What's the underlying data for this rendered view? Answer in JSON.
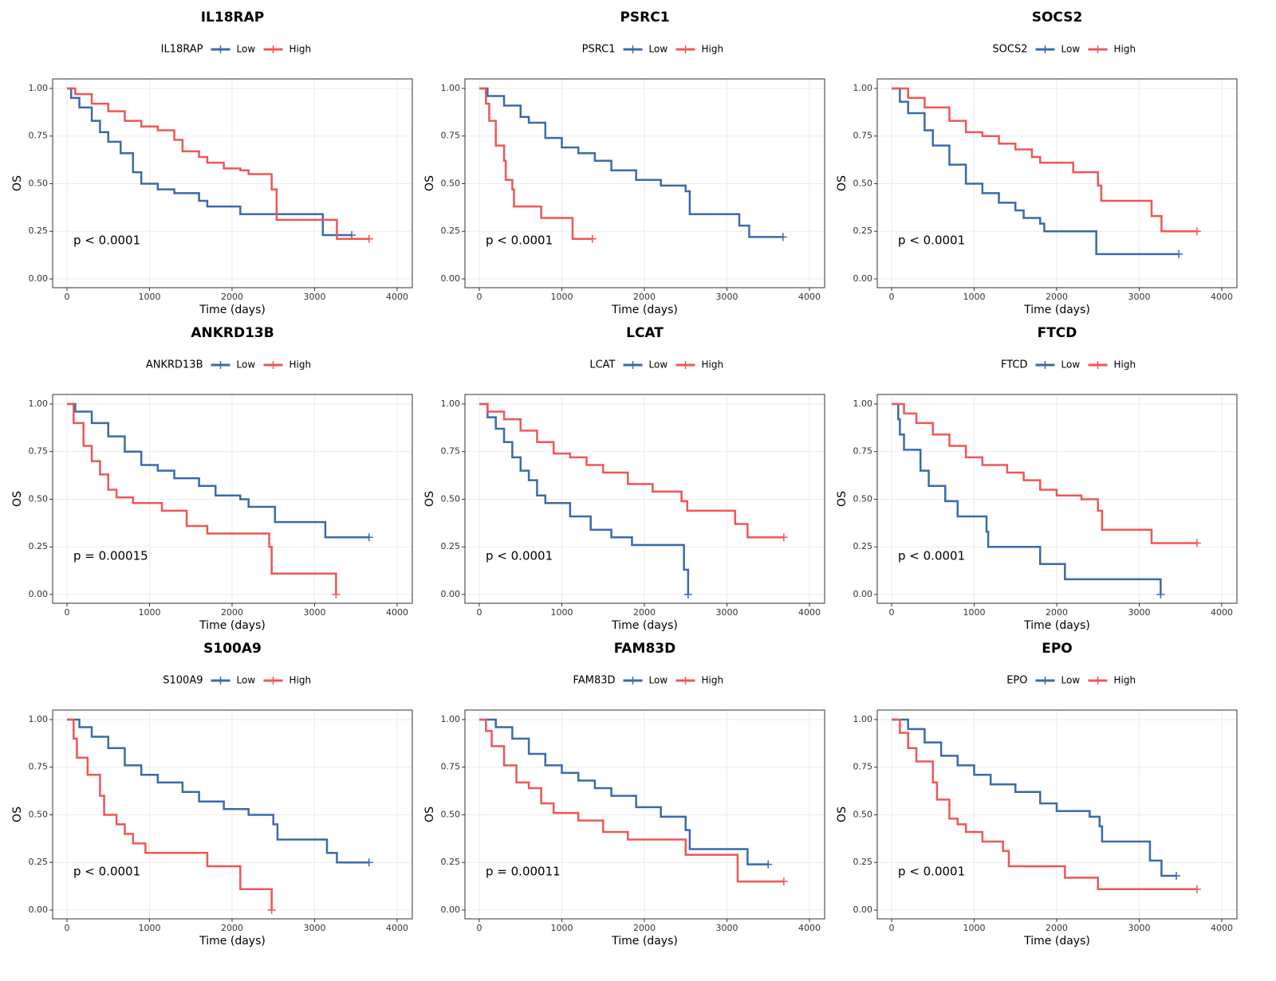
{
  "chart_data": [
    {
      "type": "line",
      "step": true,
      "title": "IL18RAP",
      "legend_title": "IL18RAP",
      "xlabel": "Time (days)",
      "ylabel": "OS",
      "annotation": "p < 0.0001",
      "xlim": [
        -174,
        4184
      ],
      "ylim": [
        -0.046,
        1.05
      ],
      "xticks": [
        0,
        1000,
        2000,
        3000,
        4000
      ],
      "yticks": [
        {
          "value": 0,
          "label": "0.00"
        },
        {
          "value": 0.25,
          "label": "0.25"
        },
        {
          "value": 0.5,
          "label": "0.50"
        },
        {
          "value": 0.75,
          "label": "0.75"
        },
        {
          "value": 1,
          "label": "1.00"
        }
      ],
      "grid": true,
      "series": [
        {
          "name": "Low",
          "color": "#3b6aaa",
          "x": [
            0,
            50,
            150,
            300,
            400,
            500,
            650,
            800,
            900,
            1100,
            1300,
            1600,
            1700,
            2100,
            3100,
            3450
          ],
          "values": [
            1,
            0.95,
            0.9,
            0.83,
            0.77,
            0.72,
            0.66,
            0.56,
            0.5,
            0.47,
            0.45,
            0.41,
            0.38,
            0.34,
            0.23,
            0.23
          ]
        },
        {
          "name": "High",
          "color": "#ef5656",
          "x": [
            0,
            100,
            300,
            500,
            700,
            900,
            1100,
            1300,
            1400,
            1600,
            1700,
            1900,
            2100,
            2200,
            2480,
            2540,
            3270,
            3660
          ],
          "values": [
            1,
            0.97,
            0.92,
            0.88,
            0.83,
            0.8,
            0.78,
            0.73,
            0.67,
            0.64,
            0.61,
            0.58,
            0.57,
            0.55,
            0.47,
            0.31,
            0.21,
            0.21
          ]
        }
      ]
    },
    {
      "type": "line",
      "step": true,
      "title": "PSRC1",
      "legend_title": "PSRC1",
      "xlabel": "Time (days)",
      "ylabel": "OS",
      "annotation": "p < 0.0001",
      "xlim": [
        -174,
        4184
      ],
      "ylim": [
        -0.046,
        1.05
      ],
      "xticks": [
        0,
        1000,
        2000,
        3000,
        4000
      ],
      "yticks": [
        {
          "value": 0,
          "label": "0.00"
        },
        {
          "value": 0.25,
          "label": "0.25"
        },
        {
          "value": 0.5,
          "label": "0.50"
        },
        {
          "value": 0.75,
          "label": "0.75"
        },
        {
          "value": 1,
          "label": "1.00"
        }
      ],
      "grid": true,
      "series": [
        {
          "name": "Low",
          "color": "#3b6aaa",
          "x": [
            0,
            100,
            300,
            500,
            600,
            800,
            1000,
            1200,
            1400,
            1600,
            1900,
            2200,
            2500,
            2550,
            3150,
            3270,
            3680
          ],
          "values": [
            1,
            0.96,
            0.91,
            0.85,
            0.82,
            0.74,
            0.69,
            0.66,
            0.62,
            0.57,
            0.52,
            0.49,
            0.46,
            0.34,
            0.28,
            0.22,
            0.22
          ]
        },
        {
          "name": "High",
          "color": "#ef5656",
          "x": [
            0,
            80,
            120,
            200,
            300,
            320,
            400,
            420,
            750,
            1130,
            1370
          ],
          "values": [
            1,
            0.92,
            0.83,
            0.7,
            0.62,
            0.52,
            0.47,
            0.38,
            0.32,
            0.21,
            0.21
          ]
        }
      ]
    },
    {
      "type": "line",
      "step": true,
      "title": "SOCS2",
      "legend_title": "SOCS2",
      "xlabel": "Time (days)",
      "ylabel": "OS",
      "annotation": "p < 0.0001",
      "xlim": [
        -174,
        4184
      ],
      "ylim": [
        -0.046,
        1.05
      ],
      "xticks": [
        0,
        1000,
        2000,
        3000,
        4000
      ],
      "yticks": [
        {
          "value": 0,
          "label": "0.00"
        },
        {
          "value": 0.25,
          "label": "0.25"
        },
        {
          "value": 0.5,
          "label": "0.50"
        },
        {
          "value": 0.75,
          "label": "0.75"
        },
        {
          "value": 1,
          "label": "1.00"
        }
      ],
      "grid": true,
      "series": [
        {
          "name": "Low",
          "color": "#3b6aaa",
          "x": [
            0,
            100,
            200,
            400,
            500,
            700,
            900,
            1100,
            1300,
            1500,
            1600,
            1800,
            1850,
            2480,
            3480
          ],
          "values": [
            1,
            0.93,
            0.87,
            0.78,
            0.7,
            0.6,
            0.5,
            0.45,
            0.4,
            0.36,
            0.32,
            0.29,
            0.25,
            0.13,
            0.13
          ]
        },
        {
          "name": "High",
          "color": "#ef5656",
          "x": [
            0,
            200,
            400,
            700,
            900,
            1100,
            1300,
            1500,
            1700,
            1800,
            2200,
            2500,
            2540,
            3150,
            3270,
            3700
          ],
          "values": [
            1,
            0.95,
            0.9,
            0.83,
            0.77,
            0.75,
            0.71,
            0.68,
            0.64,
            0.61,
            0.56,
            0.49,
            0.41,
            0.33,
            0.25,
            0.25
          ]
        }
      ]
    },
    {
      "type": "line",
      "step": true,
      "title": "ANKRD13B",
      "legend_title": "ANKRD13B",
      "xlabel": "Time (days)",
      "ylabel": "OS",
      "annotation": "p = 0.00015",
      "xlim": [
        -174,
        4184
      ],
      "ylim": [
        -0.046,
        1.05
      ],
      "xticks": [
        0,
        1000,
        2000,
        3000,
        4000
      ],
      "yticks": [
        {
          "value": 0,
          "label": "0.00"
        },
        {
          "value": 0.25,
          "label": "0.25"
        },
        {
          "value": 0.5,
          "label": "0.50"
        },
        {
          "value": 0.75,
          "label": "0.75"
        },
        {
          "value": 1,
          "label": "1.00"
        }
      ],
      "grid": true,
      "series": [
        {
          "name": "Low",
          "color": "#3b6aaa",
          "x": [
            0,
            100,
            300,
            500,
            700,
            900,
            1100,
            1300,
            1600,
            1800,
            2100,
            2200,
            2520,
            3130,
            3660
          ],
          "values": [
            1,
            0.96,
            0.9,
            0.83,
            0.75,
            0.68,
            0.65,
            0.61,
            0.57,
            0.52,
            0.5,
            0.46,
            0.38,
            0.3,
            0.3
          ]
        },
        {
          "name": "High",
          "color": "#ef5656",
          "x": [
            0,
            80,
            200,
            300,
            400,
            500,
            600,
            800,
            1150,
            1450,
            1700,
            2450,
            2480,
            3260
          ],
          "values": [
            1,
            0.9,
            0.78,
            0.7,
            0.63,
            0.55,
            0.51,
            0.48,
            0.44,
            0.36,
            0.32,
            0.25,
            0.11,
            0
          ]
        }
      ]
    },
    {
      "type": "line",
      "step": true,
      "title": "LCAT",
      "legend_title": "LCAT",
      "xlabel": "Time (days)",
      "ylabel": "OS",
      "annotation": "p < 0.0001",
      "xlim": [
        -174,
        4184
      ],
      "ylim": [
        -0.046,
        1.05
      ],
      "xticks": [
        0,
        1000,
        2000,
        3000,
        4000
      ],
      "yticks": [
        {
          "value": 0,
          "label": "0.00"
        },
        {
          "value": 0.25,
          "label": "0.25"
        },
        {
          "value": 0.5,
          "label": "0.50"
        },
        {
          "value": 0.75,
          "label": "0.75"
        },
        {
          "value": 1,
          "label": "1.00"
        }
      ],
      "grid": true,
      "series": [
        {
          "name": "Low",
          "color": "#3b6aaa",
          "x": [
            0,
            100,
            200,
            300,
            400,
            500,
            600,
            700,
            800,
            1100,
            1350,
            1600,
            1850,
            2480,
            2530
          ],
          "values": [
            1,
            0.93,
            0.87,
            0.8,
            0.72,
            0.65,
            0.6,
            0.52,
            0.48,
            0.41,
            0.34,
            0.3,
            0.26,
            0.13,
            0
          ]
        },
        {
          "name": "High",
          "color": "#ef5656",
          "x": [
            0,
            100,
            300,
            500,
            700,
            900,
            1100,
            1300,
            1500,
            1800,
            2100,
            2450,
            2520,
            3100,
            3250,
            3690
          ],
          "values": [
            1,
            0.96,
            0.92,
            0.86,
            0.8,
            0.74,
            0.72,
            0.68,
            0.64,
            0.58,
            0.54,
            0.49,
            0.44,
            0.37,
            0.3,
            0.3
          ]
        }
      ]
    },
    {
      "type": "line",
      "step": true,
      "title": "FTCD",
      "legend_title": "FTCD",
      "xlabel": "Time (days)",
      "ylabel": "OS",
      "annotation": "p < 0.0001",
      "xlim": [
        -174,
        4184
      ],
      "ylim": [
        -0.046,
        1.05
      ],
      "xticks": [
        0,
        1000,
        2000,
        3000,
        4000
      ],
      "yticks": [
        {
          "value": 0,
          "label": "0.00"
        },
        {
          "value": 0.25,
          "label": "0.25"
        },
        {
          "value": 0.5,
          "label": "0.50"
        },
        {
          "value": 0.75,
          "label": "0.75"
        },
        {
          "value": 1,
          "label": "1.00"
        }
      ],
      "grid": true,
      "series": [
        {
          "name": "Low",
          "color": "#3b6aaa",
          "x": [
            0,
            80,
            100,
            150,
            350,
            450,
            650,
            800,
            1150,
            1170,
            1800,
            2100,
            3260
          ],
          "values": [
            1,
            0.92,
            0.84,
            0.76,
            0.65,
            0.57,
            0.49,
            0.41,
            0.33,
            0.25,
            0.16,
            0.08,
            0
          ]
        },
        {
          "name": "High",
          "color": "#ef5656",
          "x": [
            0,
            150,
            300,
            500,
            700,
            900,
            1100,
            1400,
            1600,
            1800,
            2000,
            2300,
            2500,
            2550,
            3150,
            3700
          ],
          "values": [
            1,
            0.95,
            0.9,
            0.84,
            0.78,
            0.72,
            0.68,
            0.64,
            0.6,
            0.55,
            0.52,
            0.5,
            0.44,
            0.34,
            0.27,
            0.27
          ]
        }
      ]
    },
    {
      "type": "line",
      "step": true,
      "title": "S100A9",
      "legend_title": "S100A9",
      "xlabel": "Time (days)",
      "ylabel": "OS",
      "annotation": "p < 0.0001",
      "xlim": [
        -174,
        4184
      ],
      "ylim": [
        -0.046,
        1.05
      ],
      "xticks": [
        0,
        1000,
        2000,
        3000,
        4000
      ],
      "yticks": [
        {
          "value": 0,
          "label": "0.00"
        },
        {
          "value": 0.25,
          "label": "0.25"
        },
        {
          "value": 0.5,
          "label": "0.50"
        },
        {
          "value": 0.75,
          "label": "0.75"
        },
        {
          "value": 1,
          "label": "1.00"
        }
      ],
      "grid": true,
      "series": [
        {
          "name": "Low",
          "color": "#3b6aaa",
          "x": [
            0,
            150,
            300,
            500,
            700,
            900,
            1100,
            1400,
            1600,
            1900,
            2200,
            2500,
            2550,
            3150,
            3270,
            3660
          ],
          "values": [
            1,
            0.96,
            0.91,
            0.85,
            0.76,
            0.71,
            0.67,
            0.62,
            0.57,
            0.53,
            0.5,
            0.45,
            0.37,
            0.3,
            0.25,
            0.25
          ]
        },
        {
          "name": "High",
          "color": "#ef5656",
          "x": [
            0,
            80,
            120,
            250,
            400,
            450,
            600,
            700,
            800,
            950,
            1700,
            2100,
            2480
          ],
          "values": [
            1,
            0.9,
            0.8,
            0.71,
            0.6,
            0.5,
            0.45,
            0.4,
            0.35,
            0.3,
            0.23,
            0.11,
            0
          ]
        }
      ]
    },
    {
      "type": "line",
      "step": true,
      "title": "FAM83D",
      "legend_title": "FAM83D",
      "xlabel": "Time (days)",
      "ylabel": "OS",
      "annotation": "p = 0.00011",
      "xlim": [
        -174,
        4184
      ],
      "ylim": [
        -0.046,
        1.05
      ],
      "xticks": [
        0,
        1000,
        2000,
        3000,
        4000
      ],
      "yticks": [
        {
          "value": 0,
          "label": "0.00"
        },
        {
          "value": 0.25,
          "label": "0.25"
        },
        {
          "value": 0.5,
          "label": "0.50"
        },
        {
          "value": 0.75,
          "label": "0.75"
        },
        {
          "value": 1,
          "label": "1.00"
        }
      ],
      "grid": true,
      "series": [
        {
          "name": "Low",
          "color": "#3b6aaa",
          "x": [
            0,
            200,
            400,
            600,
            800,
            1000,
            1200,
            1400,
            1600,
            1900,
            2200,
            2500,
            2550,
            3250,
            3500
          ],
          "values": [
            1,
            0.96,
            0.9,
            0.82,
            0.76,
            0.72,
            0.68,
            0.64,
            0.6,
            0.54,
            0.49,
            0.42,
            0.32,
            0.24,
            0.24
          ]
        },
        {
          "name": "High",
          "color": "#ef5656",
          "x": [
            0,
            80,
            150,
            300,
            450,
            600,
            750,
            900,
            1200,
            1500,
            1800,
            2500,
            3130,
            3690
          ],
          "values": [
            1,
            0.94,
            0.86,
            0.76,
            0.67,
            0.64,
            0.56,
            0.51,
            0.47,
            0.41,
            0.37,
            0.29,
            0.15,
            0.15
          ]
        }
      ]
    },
    {
      "type": "line",
      "step": true,
      "title": "EPO",
      "legend_title": "EPO",
      "xlabel": "Time (days)",
      "ylabel": "OS",
      "annotation": "p < 0.0001",
      "xlim": [
        -174,
        4184
      ],
      "ylim": [
        -0.046,
        1.05
      ],
      "xticks": [
        0,
        1000,
        2000,
        3000,
        4000
      ],
      "yticks": [
        {
          "value": 0,
          "label": "0.00"
        },
        {
          "value": 0.25,
          "label": "0.25"
        },
        {
          "value": 0.5,
          "label": "0.50"
        },
        {
          "value": 0.75,
          "label": "0.75"
        },
        {
          "value": 1,
          "label": "1.00"
        }
      ],
      "grid": true,
      "series": [
        {
          "name": "Low",
          "color": "#3b6aaa",
          "x": [
            0,
            200,
            400,
            600,
            800,
            1000,
            1200,
            1500,
            1800,
            2000,
            2400,
            2520,
            2550,
            3130,
            3270,
            3450
          ],
          "values": [
            1,
            0.95,
            0.88,
            0.81,
            0.76,
            0.71,
            0.66,
            0.62,
            0.56,
            0.52,
            0.49,
            0.44,
            0.36,
            0.26,
            0.18,
            0.18
          ]
        },
        {
          "name": "High",
          "color": "#ef5656",
          "x": [
            0,
            100,
            200,
            300,
            500,
            550,
            700,
            800,
            900,
            1100,
            1350,
            1420,
            2100,
            2500,
            3700
          ],
          "values": [
            1,
            0.93,
            0.85,
            0.78,
            0.67,
            0.58,
            0.48,
            0.45,
            0.41,
            0.36,
            0.31,
            0.23,
            0.17,
            0.11,
            0.11
          ]
        }
      ]
    }
  ]
}
